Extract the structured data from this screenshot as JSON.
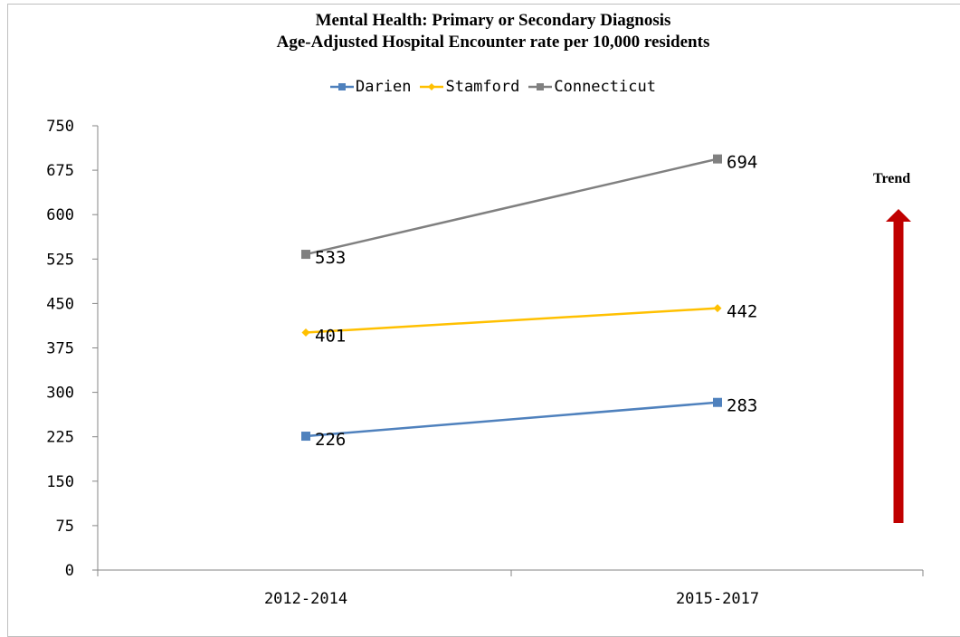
{
  "chart_data": {
    "type": "line",
    "title": "Mental Health: Primary or Secondary Diagnosis",
    "subtitle": "Age-Adjusted  Hospital Encounter rate per 10,000 residents",
    "categories": [
      "2012-2014",
      "2015-2017"
    ],
    "ylim": [
      0,
      750
    ],
    "yticks": [
      0,
      75,
      150,
      225,
      300,
      375,
      450,
      525,
      600,
      675,
      750
    ],
    "grid": false,
    "legend_position": "top-center",
    "series": [
      {
        "name": "Darien",
        "values": [
          226,
          283
        ],
        "color": "#4f81bd",
        "marker": "square"
      },
      {
        "name": "Stamford",
        "values": [
          401,
          442
        ],
        "color": "#ffc000",
        "marker": "diamond"
      },
      {
        "name": "Connecticut",
        "values": [
          533,
          694
        ],
        "color": "#808080",
        "marker": "square"
      }
    ],
    "annotation": {
      "text": "Trend",
      "arrow_direction": "up",
      "arrow_color": "#c00000"
    }
  }
}
